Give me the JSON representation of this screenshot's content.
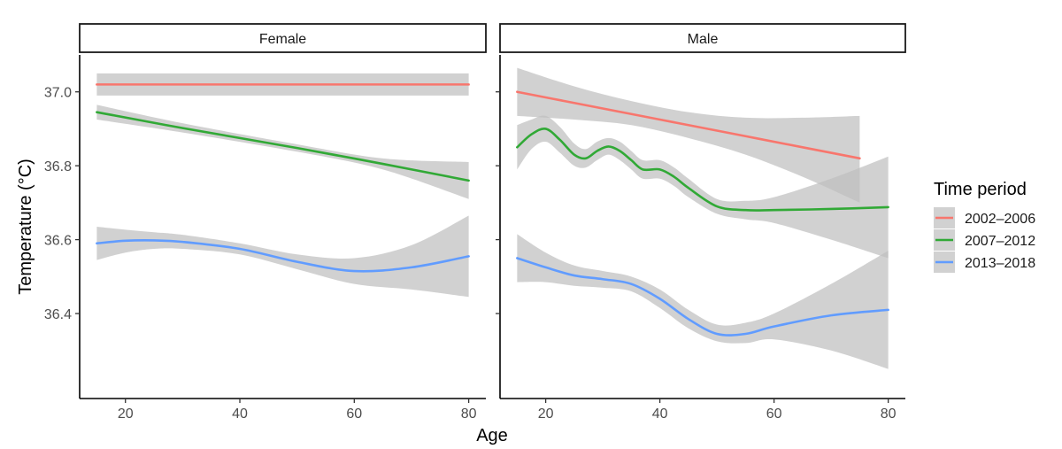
{
  "chart_data": {
    "type": "line",
    "xlabel": "Age",
    "ylabel": "Temperature (°C)",
    "xlim": [
      12,
      83
    ],
    "ylim": [
      36.17,
      37.1
    ],
    "x_ticks": [
      20,
      40,
      60,
      80
    ],
    "y_ticks": [
      36.4,
      36.6,
      36.8,
      37.0
    ],
    "y_tick_labels": [
      "36.4",
      "36.6",
      "36.8",
      "37.0"
    ],
    "legend": {
      "title": "Time period",
      "position": "right",
      "entries": [
        {
          "label": "2002–2006",
          "color": "#f8766d"
        },
        {
          "label": "2007–2012",
          "color": "#31a936"
        },
        {
          "label": "2013–2018",
          "color": "#619cff"
        }
      ]
    },
    "band_color": "#bfbfbf",
    "panels": [
      {
        "title": "Female",
        "series": [
          {
            "name": "2002–2006",
            "color": "#f8766d",
            "x": [
              15,
              80
            ],
            "y": [
              37.02,
              37.02
            ],
            "lower": [
              36.99,
              36.99
            ],
            "upper": [
              37.05,
              37.05
            ]
          },
          {
            "name": "2007–2012",
            "color": "#31a936",
            "x": [
              15,
              30,
              50,
              65,
              80
            ],
            "y": [
              36.945,
              36.902,
              36.848,
              36.805,
              36.76
            ],
            "lower": [
              36.925,
              36.89,
              36.838,
              36.79,
              36.71
            ],
            "upper": [
              36.965,
              36.915,
              36.858,
              36.82,
              36.81
            ]
          },
          {
            "name": "2013–2018",
            "color": "#619cff",
            "x": [
              15,
              20,
              25,
              30,
              40,
              50,
              60,
              70,
              80
            ],
            "y": [
              36.59,
              36.597,
              36.598,
              36.594,
              36.575,
              36.54,
              36.515,
              36.525,
              36.555
            ],
            "lower": [
              36.545,
              36.565,
              36.575,
              36.575,
              36.56,
              36.52,
              36.48,
              36.465,
              36.445
            ],
            "upper": [
              36.635,
              36.627,
              36.62,
              36.613,
              36.59,
              36.56,
              36.55,
              36.585,
              36.665
            ]
          }
        ]
      },
      {
        "title": "Male",
        "series": [
          {
            "name": "2002–2006",
            "color": "#f8766d",
            "x": [
              15,
              25,
              35,
              45,
              55,
              65,
              75
            ],
            "y": [
              37.0,
              36.97,
              36.94,
              36.91,
              36.88,
              36.85,
              36.82
            ],
            "lower": [
              36.935,
              36.925,
              36.91,
              36.875,
              36.83,
              36.77,
              36.7
            ],
            "upper": [
              37.065,
              37.015,
              36.975,
              36.945,
              36.93,
              36.93,
              36.935
            ]
          },
          {
            "name": "2007–2012",
            "color": "#31a936",
            "x": [
              15,
              17.5,
              20,
              22.5,
              25,
              27,
              29,
              31,
              33,
              35,
              37,
              40,
              42.5,
              45,
              50,
              55,
              60,
              70,
              80
            ],
            "y": [
              36.85,
              36.885,
              36.9,
              36.87,
              36.83,
              36.82,
              36.84,
              36.852,
              36.84,
              36.815,
              36.79,
              36.79,
              36.77,
              36.74,
              36.69,
              36.68,
              36.68,
              36.683,
              36.688
            ],
            "lower": [
              36.79,
              36.845,
              36.865,
              36.835,
              36.8,
              36.795,
              36.815,
              36.83,
              36.815,
              36.79,
              36.765,
              36.765,
              36.745,
              36.715,
              36.67,
              36.655,
              36.645,
              36.6,
              36.55
            ],
            "upper": [
              36.91,
              36.925,
              36.935,
              36.905,
              36.86,
              36.845,
              36.865,
              36.875,
              36.865,
              36.84,
              36.815,
              36.815,
              36.795,
              36.765,
              36.71,
              36.705,
              36.715,
              36.765,
              36.825
            ]
          },
          {
            "name": "2013–2018",
            "color": "#619cff",
            "x": [
              15,
              20,
              25,
              30,
              35,
              40,
              45,
              50,
              55,
              60,
              70,
              80
            ],
            "y": [
              36.55,
              36.525,
              36.503,
              36.493,
              36.48,
              36.44,
              36.385,
              36.345,
              36.345,
              36.365,
              36.395,
              36.41
            ],
            "lower": [
              36.485,
              36.485,
              36.475,
              36.47,
              36.46,
              36.415,
              36.36,
              36.325,
              36.32,
              36.33,
              36.3,
              36.25
            ],
            "upper": [
              36.615,
              36.565,
              36.53,
              36.515,
              36.5,
              36.465,
              36.41,
              36.37,
              36.375,
              36.4,
              36.48,
              36.57
            ]
          }
        ]
      }
    ]
  }
}
